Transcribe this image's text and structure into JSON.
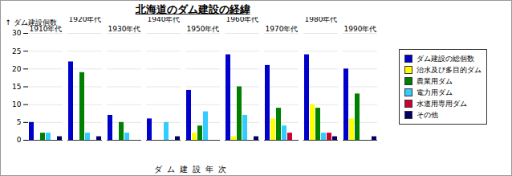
{
  "chart_data": {
    "type": "bar",
    "title": "北海道のダム建設の経緯",
    "y_label": "ダム建設個数",
    "x_label": "ダム建設年次",
    "categories": [
      "1910年代",
      "1920年代",
      "1930年代",
      "1940年代",
      "1950年代",
      "1960年代",
      "1970年代",
      "1980年代",
      "1990年代"
    ],
    "series": [
      {
        "name": "ダム建設の総個数",
        "color": "#0000cc",
        "values": [
          5,
          22,
          7,
          6,
          14,
          24,
          21,
          24,
          20
        ]
      },
      {
        "name": "治水及び多目的ダム",
        "color": "#ffff00",
        "values": [
          0,
          0,
          0,
          0,
          2,
          1,
          6,
          10,
          6
        ]
      },
      {
        "name": "農業用ダム",
        "color": "#008000",
        "values": [
          2,
          19,
          5,
          0,
          4,
          15,
          9,
          9,
          13
        ]
      },
      {
        "name": "電力用ダム",
        "color": "#33ccff",
        "values": [
          2,
          2,
          2,
          5,
          8,
          7,
          4,
          2,
          0
        ]
      },
      {
        "name": "水道用専用ダム",
        "color": "#cc0033",
        "values": [
          0,
          0,
          0,
          0,
          0,
          0,
          2,
          2,
          0
        ]
      },
      {
        "name": "その他",
        "color": "#000066",
        "values": [
          1,
          1,
          0,
          1,
          0,
          1,
          0,
          1,
          1
        ]
      }
    ],
    "ylim": [
      0,
      30
    ],
    "yticks": [
      0,
      5,
      10,
      15,
      20,
      25,
      30
    ],
    "grid": true,
    "legend": "right"
  }
}
